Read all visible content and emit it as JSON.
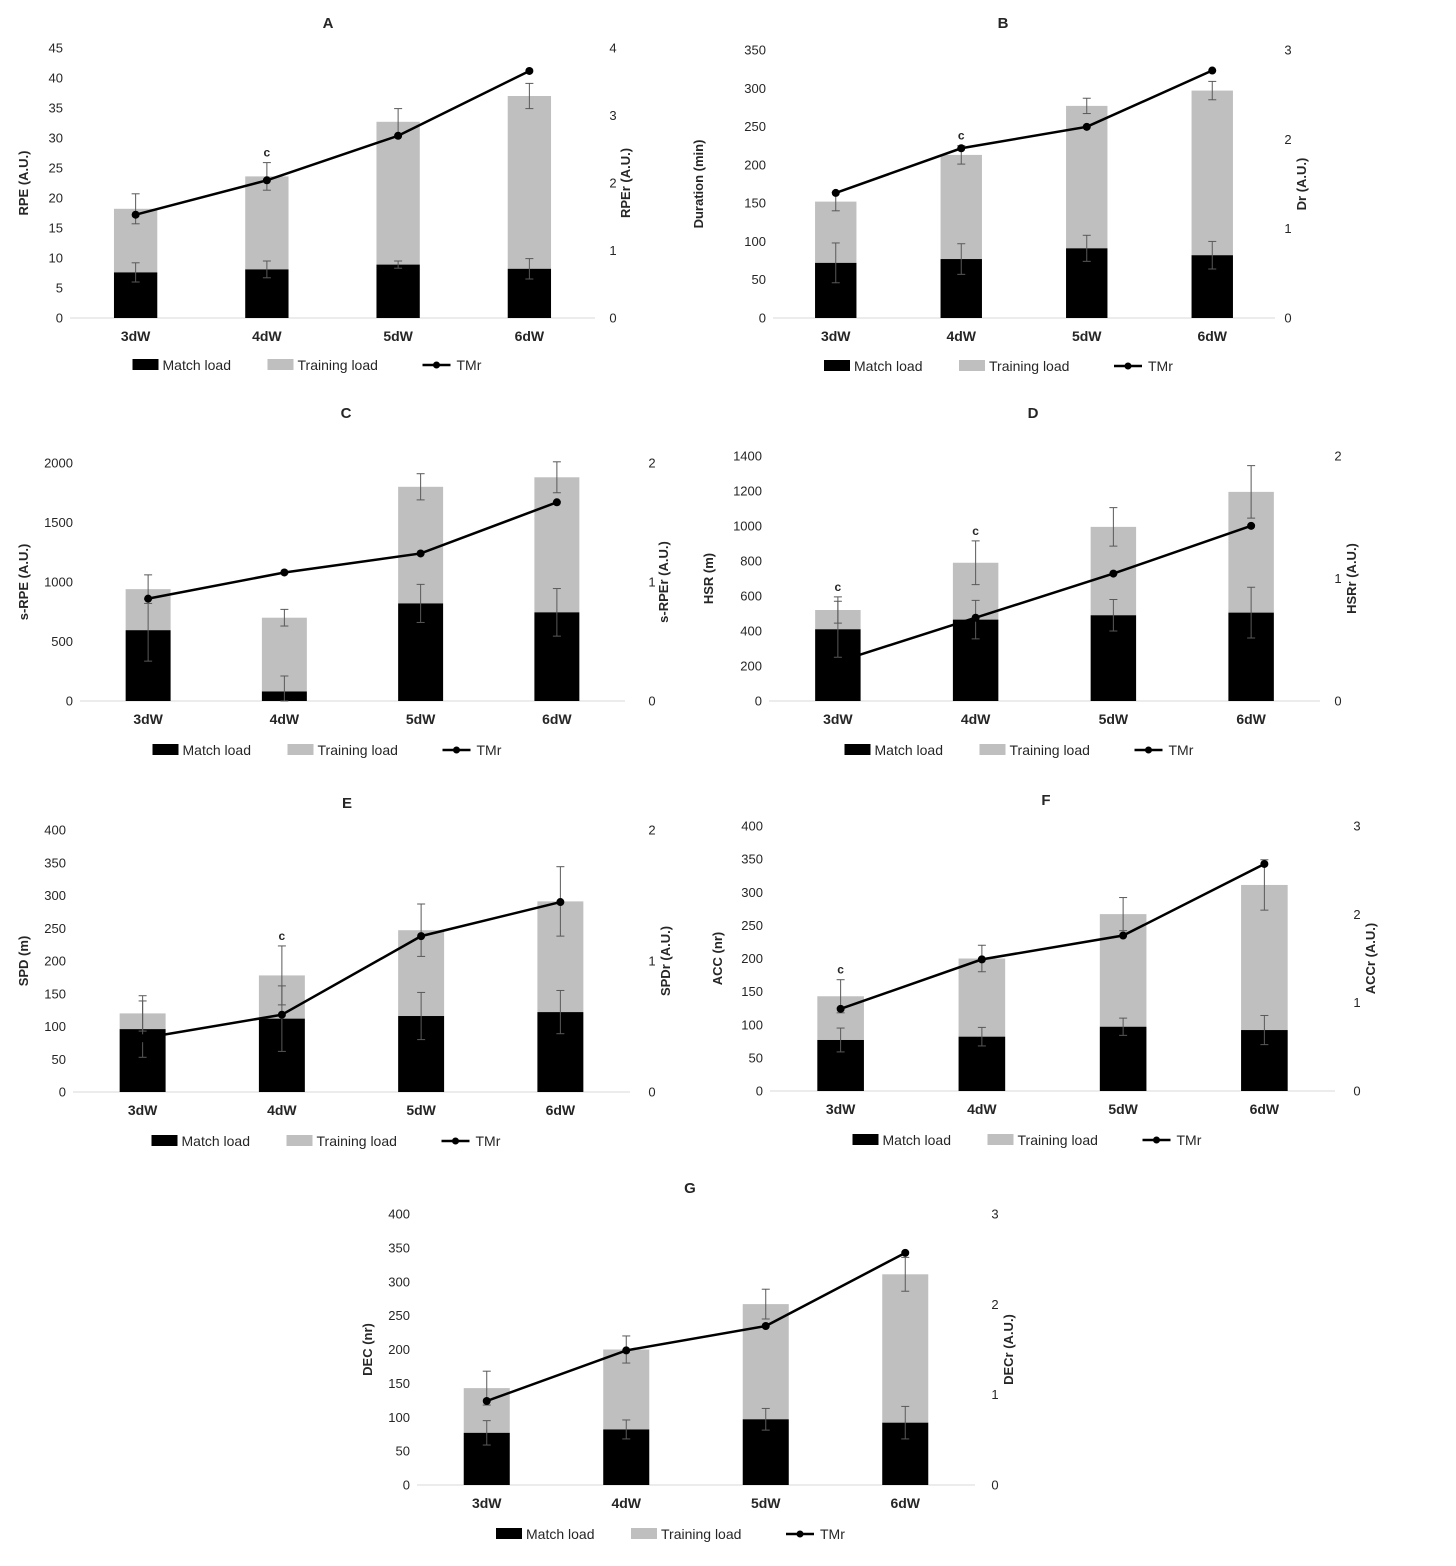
{
  "colors": {
    "match": "#000000",
    "training": "#bfbfbf",
    "line": "#000000",
    "error_bar": "#595959"
  },
  "legend": {
    "match": "Match load",
    "training": "Training load",
    "line": "TMr"
  },
  "chart_data": [
    {
      "type": "bar",
      "stacked": true,
      "title": "A",
      "categories": [
        "3dW",
        "4dW",
        "5dW",
        "6dW"
      ],
      "ylabel": "RPE (A.U.)",
      "y2label": "RPEr (A.U.)",
      "ylim": [
        0,
        45
      ],
      "yticks": [
        0,
        5,
        10,
        15,
        20,
        25,
        30,
        35,
        40,
        45
      ],
      "y2lim": [
        0,
        4
      ],
      "y2ticks": [
        0,
        1,
        2,
        3,
        4
      ],
      "series": [
        {
          "name": "Match load",
          "values": [
            7.6,
            8.1,
            8.9,
            8.2
          ],
          "error": [
            1.6,
            1.4,
            0.6,
            1.7
          ]
        },
        {
          "name": "Training load",
          "values": [
            10.6,
            15.5,
            23.8,
            28.8
          ],
          "error": [
            2.5,
            2.3,
            2.2,
            2.1
          ]
        },
        {
          "name": "TMr",
          "type": "line",
          "axis": "right",
          "values": [
            1.53,
            2.04,
            2.7,
            3.66
          ]
        }
      ],
      "annotations": [
        {
          "category": "4dW",
          "text": "c"
        }
      ]
    },
    {
      "type": "bar",
      "stacked": true,
      "title": "B",
      "categories": [
        "3dW",
        "4dW",
        "5dW",
        "6dW"
      ],
      "ylabel": "Duration (min)",
      "y2label": "Dr (A.U.)",
      "ylim": [
        0,
        350
      ],
      "yticks": [
        0,
        50,
        100,
        150,
        200,
        250,
        300,
        350
      ],
      "y2lim": [
        0,
        3
      ],
      "y2ticks": [
        0,
        1,
        2,
        3
      ],
      "series": [
        {
          "name": "Match load",
          "values": [
            72,
            77,
            91,
            82
          ],
          "error": [
            26,
            20,
            17,
            18
          ]
        },
        {
          "name": "Training load",
          "values": [
            80,
            136,
            186,
            215
          ],
          "error": [
            12,
            12,
            10,
            12
          ]
        },
        {
          "name": "TMr",
          "type": "line",
          "axis": "right",
          "values": [
            1.4,
            1.9,
            2.14,
            2.77
          ]
        }
      ],
      "annotations": [
        {
          "category": "4dW",
          "text": "c"
        }
      ]
    },
    {
      "type": "bar",
      "stacked": true,
      "title": "C",
      "categories": [
        "3dW",
        "4dW",
        "5dW",
        "6dW"
      ],
      "ylabel": "s-RPE (A.U.)",
      "y2label": "s-RPEr (A.U.)",
      "ylim": [
        0,
        2000
      ],
      "yticks": [
        0,
        500,
        1000,
        1500,
        2000
      ],
      "y2lim": [
        0,
        2
      ],
      "y2ticks": [
        0,
        1,
        2
      ],
      "series": [
        {
          "name": "Match load",
          "values": [
            595,
            80,
            820,
            745
          ],
          "error": [
            260,
            130,
            160,
            200
          ]
        },
        {
          "name": "Training load",
          "values": [
            345,
            620,
            980,
            1135
          ],
          "error": [
            120,
            70,
            110,
            130
          ]
        },
        {
          "name": "TMr",
          "type": "line",
          "axis": "right",
          "values": [
            0.86,
            1.08,
            1.24,
            1.67
          ]
        }
      ],
      "annotations": []
    },
    {
      "type": "bar",
      "stacked": true,
      "title": "D",
      "categories": [
        "3dW",
        "4dW",
        "5dW",
        "6dW"
      ],
      "ylabel": "HSR (m)",
      "y2label": "HSRr (A.U.)",
      "ylim": [
        0,
        1400
      ],
      "yticks": [
        0,
        200,
        400,
        600,
        800,
        1000,
        1200,
        1400
      ],
      "y2lim": [
        0,
        2
      ],
      "y2ticks": [
        0,
        1,
        2
      ],
      "series": [
        {
          "name": "Match load",
          "values": [
            410,
            465,
            490,
            505
          ],
          "error": [
            160,
            110,
            90,
            145
          ]
        },
        {
          "name": "Training load",
          "values": [
            110,
            325,
            505,
            690
          ],
          "error": [
            75,
            125,
            110,
            150
          ]
        },
        {
          "name": "TMr",
          "type": "line",
          "axis": "right",
          "values": [
            0.32,
            0.68,
            1.04,
            1.43
          ]
        }
      ],
      "annotations": [
        {
          "category": "3dW",
          "text": "c"
        },
        {
          "category": "4dW",
          "text": "c"
        }
      ]
    },
    {
      "type": "bar",
      "stacked": true,
      "title": "E",
      "categories": [
        "3dW",
        "4dW",
        "5dW",
        "6dW"
      ],
      "ylabel": "SPD (m)",
      "y2label": "SPDr (A.U.)",
      "ylim": [
        0,
        400
      ],
      "yticks": [
        0,
        50,
        100,
        150,
        200,
        250,
        300,
        350,
        400
      ],
      "y2lim": [
        0,
        2
      ],
      "y2ticks": [
        0,
        1,
        2
      ],
      "series": [
        {
          "name": "Match load",
          "values": [
            96,
            112,
            116,
            122
          ],
          "error": [
            43,
            50,
            36,
            33
          ]
        },
        {
          "name": "Training load",
          "values": [
            24,
            66,
            131,
            169
          ],
          "error": [
            27,
            45,
            40,
            53
          ]
        },
        {
          "name": "TMr",
          "type": "line",
          "axis": "right",
          "values": [
            0.41,
            0.59,
            1.19,
            1.45
          ]
        }
      ],
      "annotations": [
        {
          "category": "4dW",
          "text": "c"
        }
      ]
    },
    {
      "type": "bar",
      "stacked": true,
      "title": "F",
      "categories": [
        "3dW",
        "4dW",
        "5dW",
        "6dW"
      ],
      "ylabel": "ACC (nr)",
      "y2label": "ACCr (A.U.)",
      "ylim": [
        0,
        400
      ],
      "yticks": [
        0,
        50,
        100,
        150,
        200,
        250,
        300,
        350,
        400
      ],
      "y2lim": [
        0,
        3
      ],
      "y2ticks": [
        0,
        1,
        2,
        3
      ],
      "series": [
        {
          "name": "Match load",
          "values": [
            77,
            82,
            97,
            92
          ],
          "error": [
            18,
            14,
            13,
            22
          ]
        },
        {
          "name": "Training load",
          "values": [
            66,
            118,
            170,
            219
          ],
          "error": [
            25,
            20,
            25,
            38
          ]
        },
        {
          "name": "TMr",
          "type": "line",
          "axis": "right",
          "values": [
            0.93,
            1.49,
            1.76,
            2.57
          ]
        }
      ],
      "annotations": [
        {
          "category": "3dW",
          "text": "c"
        }
      ]
    },
    {
      "type": "bar",
      "stacked": true,
      "title": "G",
      "categories": [
        "3dW",
        "4dW",
        "5dW",
        "6dW"
      ],
      "ylabel": "DEC (nr)",
      "y2label": "DECr (A.U.)",
      "ylim": [
        0,
        400
      ],
      "yticks": [
        0,
        50,
        100,
        150,
        200,
        250,
        300,
        350,
        400
      ],
      "y2lim": [
        0,
        3
      ],
      "y2ticks": [
        0,
        1,
        2,
        3
      ],
      "series": [
        {
          "name": "Match load",
          "values": [
            77,
            82,
            97,
            92
          ],
          "error": [
            18,
            14,
            16,
            24
          ]
        },
        {
          "name": "Training load",
          "values": [
            66,
            118,
            170,
            219
          ],
          "error": [
            25,
            20,
            22,
            25
          ]
        },
        {
          "name": "TMr",
          "type": "line",
          "axis": "right",
          "values": [
            0.93,
            1.49,
            1.76,
            2.57
          ]
        }
      ],
      "annotations": []
    }
  ]
}
